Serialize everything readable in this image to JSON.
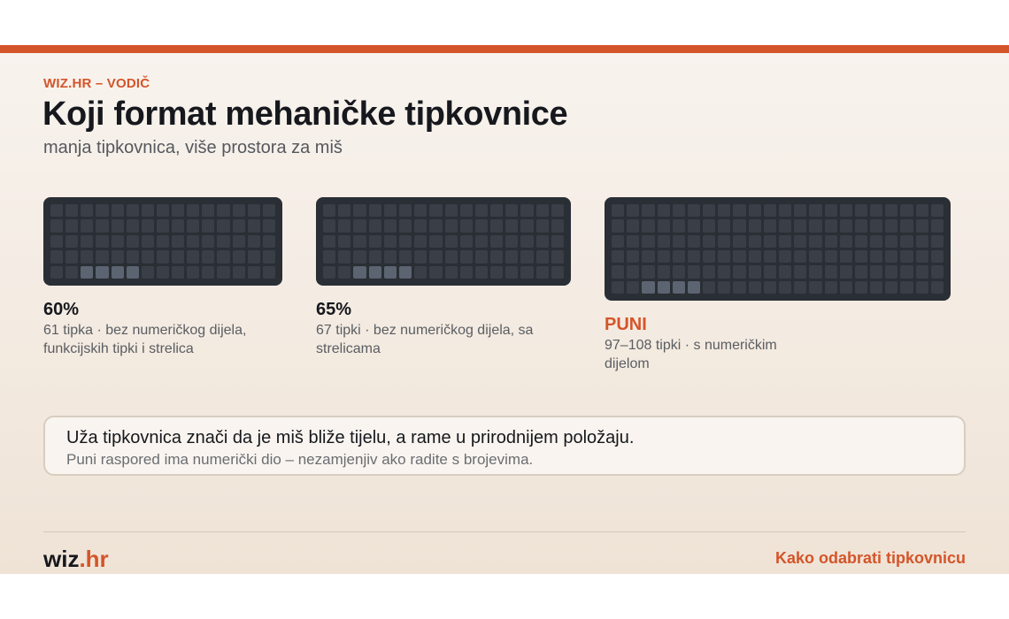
{
  "colors": {
    "accent": "#d4552a",
    "text": "#16181d",
    "muted": "#5a5d62"
  },
  "header": {
    "kicker": "WIZ.HR – VODIČ",
    "title": "Koji format mehaničke tipkovnice",
    "subtitle": "manja tipkovnica, više prostora za miš"
  },
  "formats": [
    {
      "name": "60%",
      "desc": "61 tipka · bez numeričkog dijela, funkcijskih tipki i strelica"
    },
    {
      "name": "65%",
      "desc": "67 tipki · bez numeričkog dijela, sa strelicama"
    },
    {
      "name": "PUNI",
      "desc": "97–108 tipki · s numeričkim dijelom"
    }
  ],
  "note": {
    "main": "Uža tipkovnica znači da je miš bliže tijelu, a rame u prirodnijem položaju.",
    "sub": "Puni raspored ima numerički dio – nezamjenjiv ako radite s brojevima."
  },
  "footer": {
    "brand_main": "wiz",
    "brand_accent": ".hr",
    "link": "Kako odabrati tipkovnicu"
  }
}
